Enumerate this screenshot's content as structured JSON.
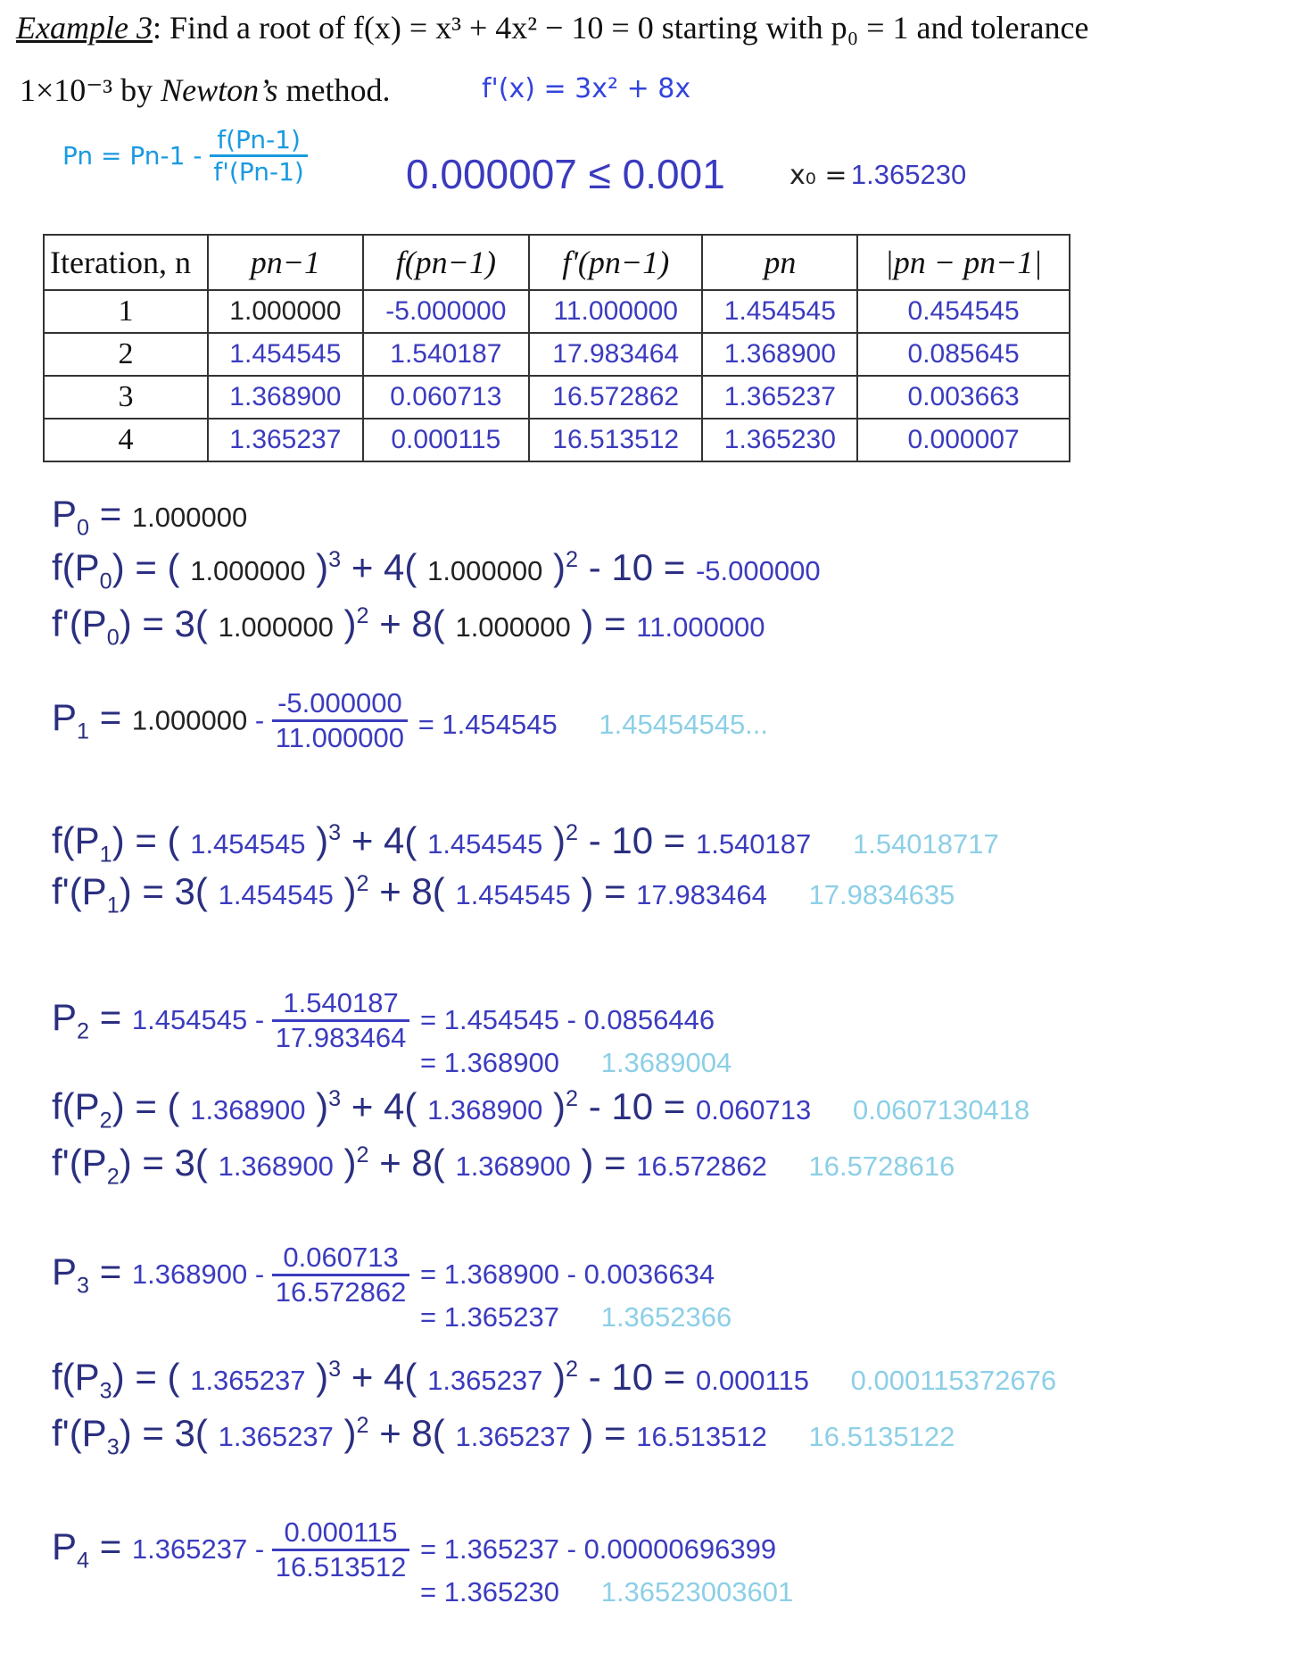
{
  "header": {
    "example_label": "Example 3",
    "line1": ": Find a root of f(x) = x³ + 4x² − 10 = 0 starting with p₀ = 1 and tolerance",
    "line2_a": "1×10⁻³ by ",
    "line2_b": "Newton’s",
    "line2_c": " method.",
    "derivative_note": "f'(x) = 3x² + 8x",
    "formula_lhs": "Pn = Pn-1 -",
    "formula_num": "f(Pn-1)",
    "formula_den": "f'(Pn-1)",
    "tolerance_check": "0.000007 ≤ 0.001",
    "root_label": "x₀ =",
    "root_value": "1.365230"
  },
  "table": {
    "headers": [
      "Iteration, n",
      "pn−1",
      "f(pn−1)",
      "f'(pn−1)",
      "pn",
      "|pn − pn−1|"
    ],
    "rows": [
      [
        "1",
        "1.000000",
        "-5.000000",
        "11.000000",
        "1.454545",
        "0.454545"
      ],
      [
        "2",
        "1.454545",
        "1.540187",
        "17.983464",
        "1.368900",
        "0.085645"
      ],
      [
        "3",
        "1.368900",
        "0.060713",
        "16.572862",
        "1.365237",
        "0.003663"
      ],
      [
        "4",
        "1.365237",
        "0.000115",
        "16.513512",
        "1.365230",
        "0.000007"
      ]
    ]
  },
  "steps": {
    "p0": {
      "label": "P",
      "sub": "0",
      "value": "1.000000"
    },
    "f0": {
      "p": "1.000000",
      "result": "-5.000000"
    },
    "fp0": {
      "p": "1.000000",
      "result": "11.000000"
    },
    "p1": {
      "sub": "1",
      "prev": "1.000000",
      "num": "-5.000000",
      "den": "11.000000",
      "result": "= 1.454545",
      "exact": "1.45454545..."
    },
    "f1": {
      "p": "1.454545",
      "result": "1.540187",
      "exact": "1.54018717"
    },
    "fp1": {
      "p": "1.454545",
      "result": "17.983464",
      "exact": "17.9834635"
    },
    "p2": {
      "sub": "2",
      "prev": "1.454545",
      "num": "1.540187",
      "den": "17.983464",
      "line1": "= 1.454545 - 0.0856446",
      "line2": "= 1.368900",
      "exact": "1.3689004"
    },
    "f2": {
      "p": "1.368900",
      "result": "0.060713",
      "exact": "0.0607130418"
    },
    "fp2": {
      "p": "1.368900",
      "result": "16.572862",
      "exact": "16.5728616"
    },
    "p3": {
      "sub": "3",
      "prev": "1.368900",
      "num": "0.060713",
      "den": "16.572862",
      "line1": "= 1.368900 - 0.0036634",
      "line2": "= 1.365237",
      "exact": "1.3652366"
    },
    "f3": {
      "p": "1.365237",
      "result": "0.000115",
      "exact": "0.000115372676"
    },
    "fp3": {
      "p": "1.365237",
      "result": "16.513512",
      "exact": "16.5135122"
    },
    "p4": {
      "sub": "4",
      "prev": "1.365237",
      "num": "0.000115",
      "den": "16.513512",
      "line1": "= 1.365237 - 0.00000696399",
      "line2": "= 1.365230",
      "exact": "1.36523003601"
    }
  },
  "colors": {
    "text": "#2b2f80",
    "value": "#3b3bbf",
    "exact": "#8ccfe6",
    "handwriting": "#3344dd"
  }
}
